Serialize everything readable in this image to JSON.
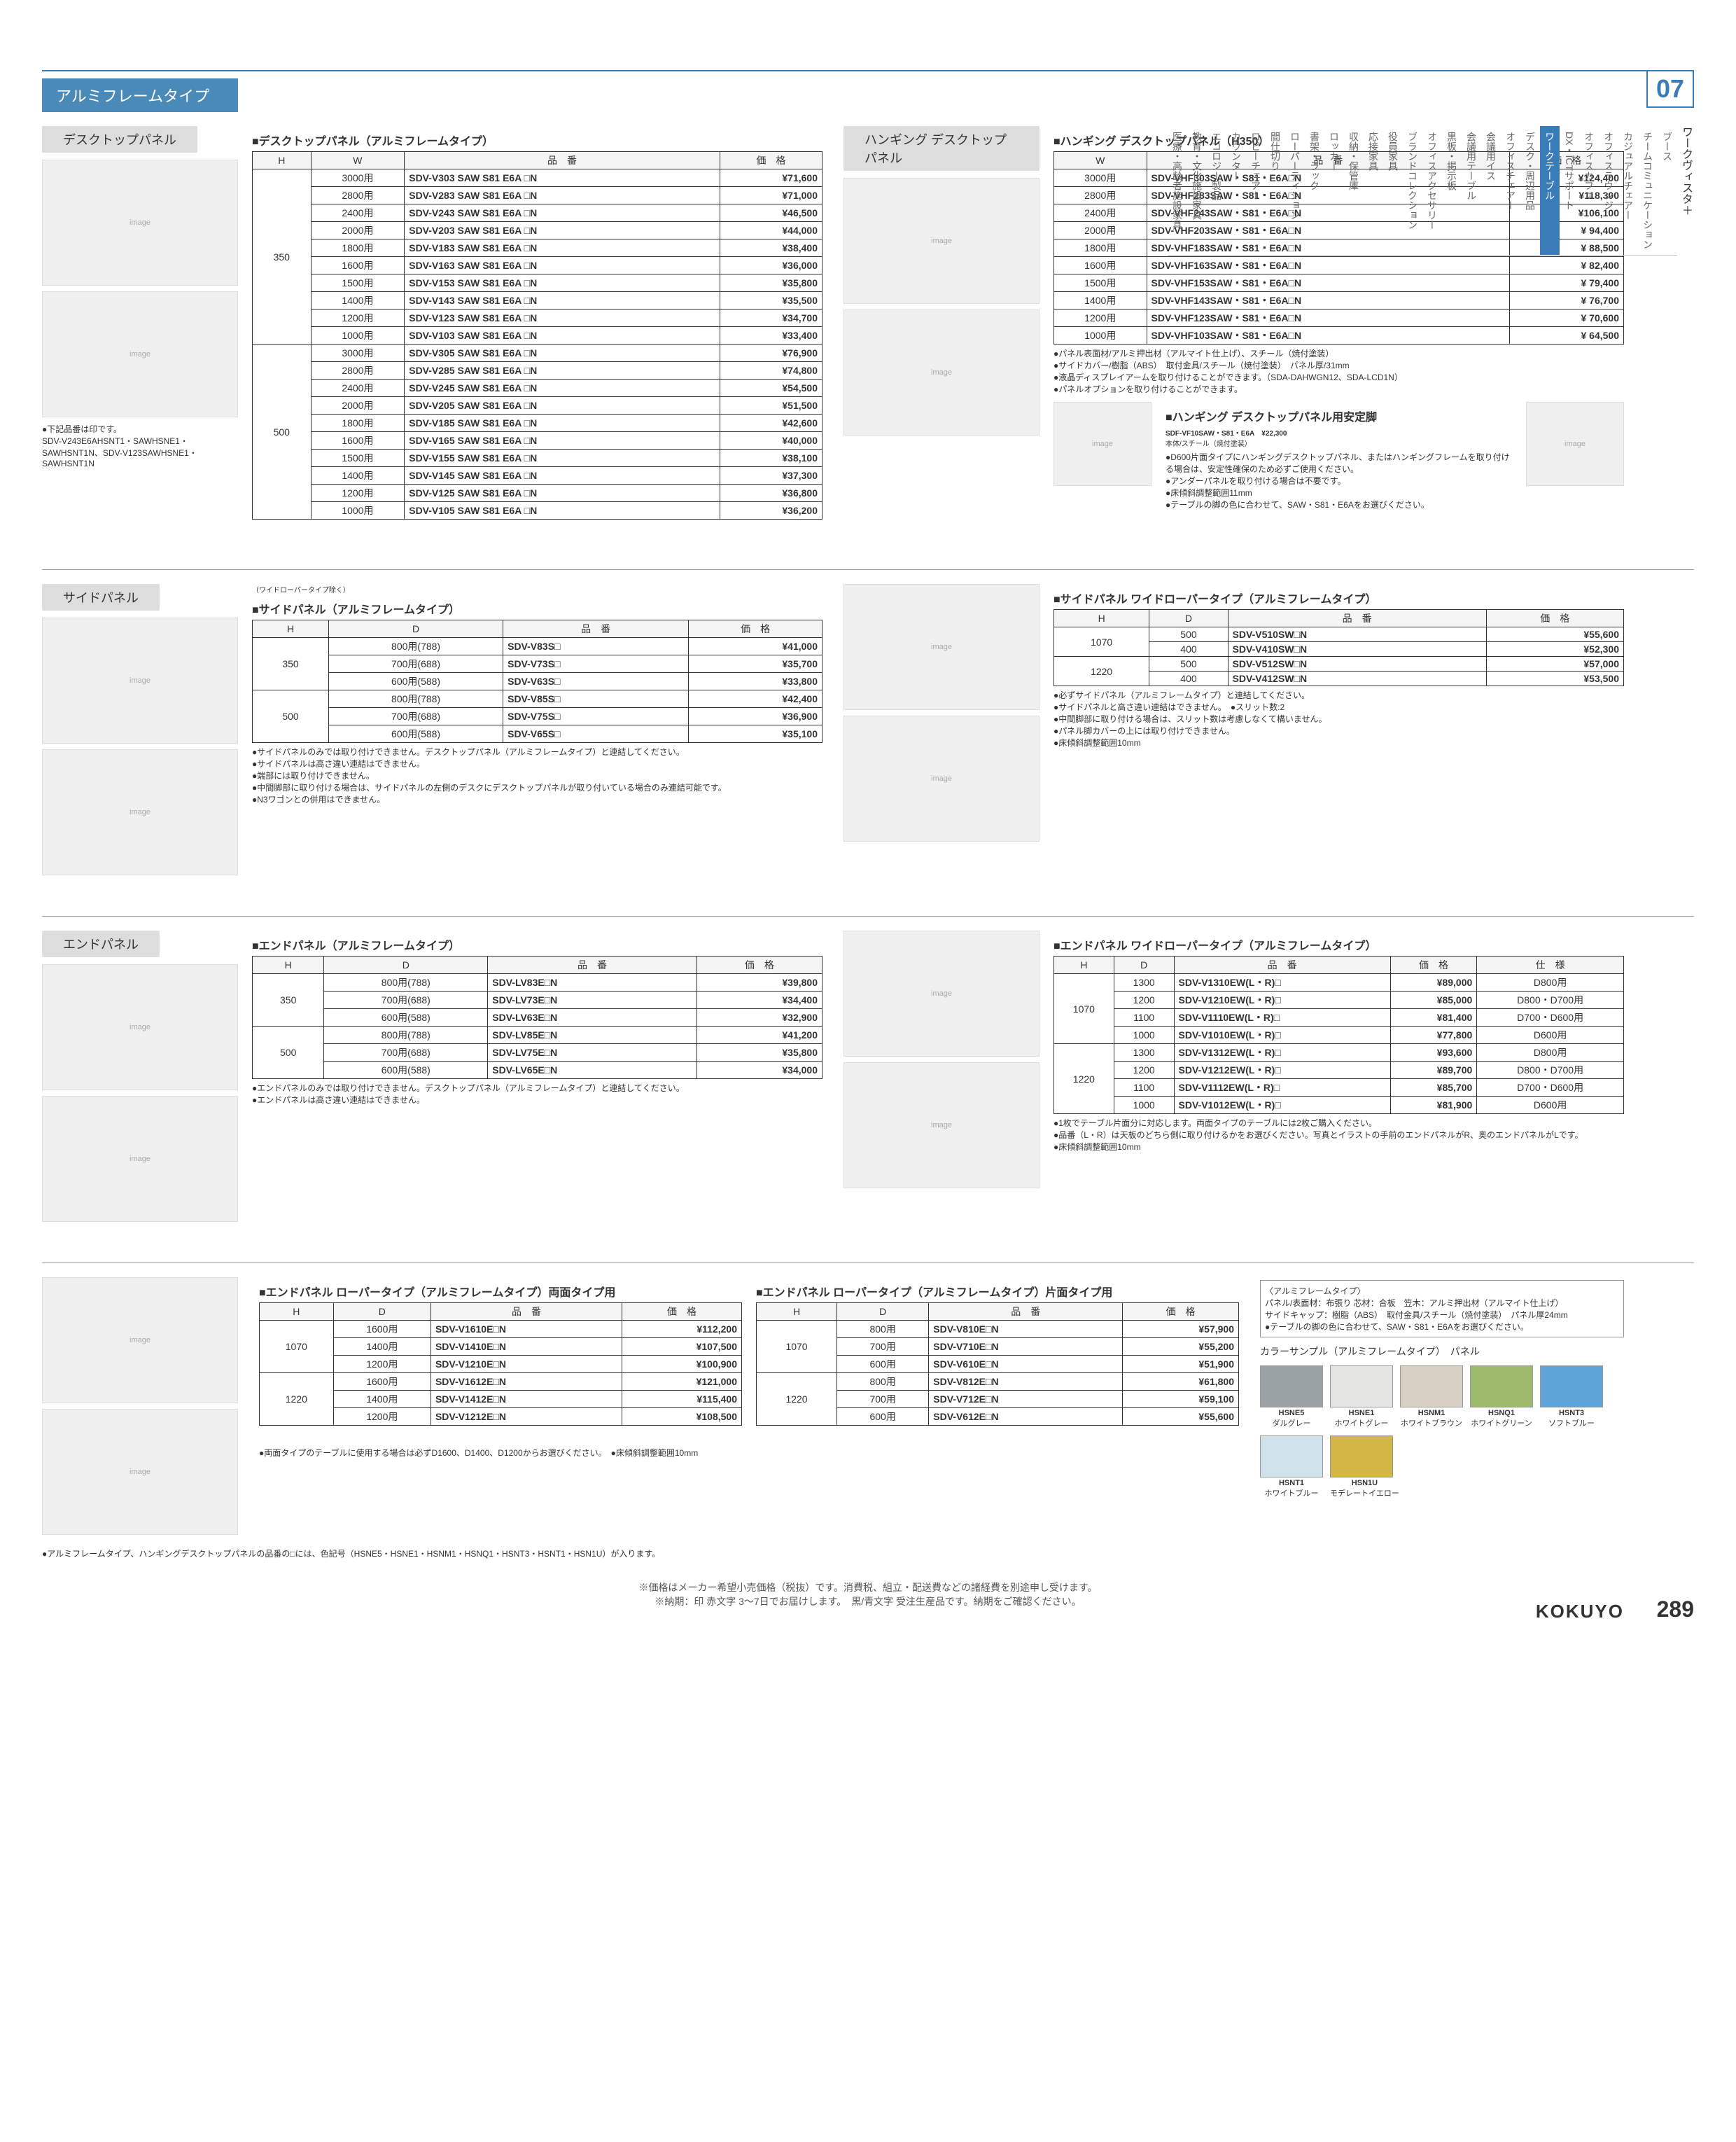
{
  "page_number": "289",
  "brand": "KOKUYO",
  "tab_number": "07",
  "side_heading": "ワークヴィスタ＋",
  "side_nav": [
    "ブース",
    "チームコミュニケーション",
    "カジュアルチェアー",
    "オフィスラウンジ",
    "オフィスカフェ",
    "DX・ICTサポート",
    "ワークテーブル",
    "デスク・周辺用品",
    "オフィスチェアー",
    "会議用イス",
    "会議用テーブル",
    "黒板・掲示板",
    "オフィスアクセサリー",
    "ブランドコレクション",
    "役員家具",
    "応接家具",
    "収納・保管庫",
    "ロッカー",
    "書架・ラック",
    "ローパーティション",
    "間仕切り",
    "ロビーチェアー",
    "カウンター",
    "エコロジー製品",
    "教育・文化施設家具",
    "医療・高齢者施設家具"
  ],
  "side_nav_active_index": 6,
  "main_title": "アルミフレームタイプ",
  "footer_lines": [
    "※価格はメーカー希望小売価格（税抜）です。消費税、組立・配送費などの諸経費を別途申し受けます。",
    "※納期：印 赤文字 3〜7日でお届けします。　黒/青文字 受注生産品です。納期をご確認ください。"
  ],
  "sections": {
    "desktop_panel": {
      "label": "デスクトップパネル",
      "heading": "デスクトップパネル（アルミフレームタイプ）",
      "columns": [
        "H",
        "W",
        "品　番",
        "価　格"
      ],
      "h_groups": [
        {
          "h": "350",
          "rows": [
            {
              "w": "3000用",
              "code": "SDV-V303 SAW S81 E6A □N",
              "price": "¥71,600"
            },
            {
              "w": "2800用",
              "code": "SDV-V283 SAW S81 E6A □N",
              "price": "¥71,000"
            },
            {
              "w": "2400用",
              "code": "SDV-V243 SAW S81 E6A □N",
              "price": "¥46,500"
            },
            {
              "w": "2000用",
              "code": "SDV-V203 SAW S81 E6A □N",
              "price": "¥44,000"
            },
            {
              "w": "1800用",
              "code": "SDV-V183 SAW S81 E6A □N",
              "price": "¥38,400"
            },
            {
              "w": "1600用",
              "code": "SDV-V163 SAW S81 E6A □N",
              "price": "¥36,000"
            },
            {
              "w": "1500用",
              "code": "SDV-V153 SAW S81 E6A □N",
              "price": "¥35,800"
            },
            {
              "w": "1400用",
              "code": "SDV-V143 SAW S81 E6A □N",
              "price": "¥35,500"
            },
            {
              "w": "1200用",
              "code": "SDV-V123 SAW S81 E6A □N",
              "price": "¥34,700"
            },
            {
              "w": "1000用",
              "code": "SDV-V103 SAW S81 E6A □N",
              "price": "¥33,400"
            }
          ]
        },
        {
          "h": "500",
          "rows": [
            {
              "w": "3000用",
              "code": "SDV-V305 SAW S81 E6A □N",
              "price": "¥76,900"
            },
            {
              "w": "2800用",
              "code": "SDV-V285 SAW S81 E6A □N",
              "price": "¥74,800"
            },
            {
              "w": "2400用",
              "code": "SDV-V245 SAW S81 E6A □N",
              "price": "¥54,500"
            },
            {
              "w": "2000用",
              "code": "SDV-V205 SAW S81 E6A □N",
              "price": "¥51,500"
            },
            {
              "w": "1800用",
              "code": "SDV-V185 SAW S81 E6A □N",
              "price": "¥42,600"
            },
            {
              "w": "1600用",
              "code": "SDV-V165 SAW S81 E6A □N",
              "price": "¥40,000"
            },
            {
              "w": "1500用",
              "code": "SDV-V155 SAW S81 E6A □N",
              "price": "¥38,100"
            },
            {
              "w": "1400用",
              "code": "SDV-V145 SAW S81 E6A □N",
              "price": "¥37,300"
            },
            {
              "w": "1200用",
              "code": "SDV-V125 SAW S81 E6A □N",
              "price": "¥36,800"
            },
            {
              "w": "1000用",
              "code": "SDV-V105 SAW S81 E6A □N",
              "price": "¥36,200"
            }
          ]
        }
      ],
      "foot": "●下記品番は印です。\nSDV-V243E6AHSNT1・SAWHSNE1・SAWHSNT1N、SDV-V123SAWHSNE1・SAWHSNT1N"
    },
    "hanging": {
      "label": "ハンギング デスクトップパネル",
      "heading": "ハンギング デスクトップパネル（H350）",
      "columns": [
        "W",
        "品　番",
        "価　格"
      ],
      "rows": [
        {
          "w": "3000用",
          "code": "SDV-VHF303SAW・S81・E6A□N",
          "price": "¥124,400"
        },
        {
          "w": "2800用",
          "code": "SDV-VHF283SAW・S81・E6A□N",
          "price": "¥118,300"
        },
        {
          "w": "2400用",
          "code": "SDV-VHF243SAW・S81・E6A□N",
          "price": "¥106,100"
        },
        {
          "w": "2000用",
          "code": "SDV-VHF203SAW・S81・E6A□N",
          "price": "¥ 94,400"
        },
        {
          "w": "1800用",
          "code": "SDV-VHF183SAW・S81・E6A□N",
          "price": "¥ 88,500"
        },
        {
          "w": "1600用",
          "code": "SDV-VHF163SAW・S81・E6A□N",
          "price": "¥ 82,400"
        },
        {
          "w": "1500用",
          "code": "SDV-VHF153SAW・S81・E6A□N",
          "price": "¥ 79,400"
        },
        {
          "w": "1400用",
          "code": "SDV-VHF143SAW・S81・E6A□N",
          "price": "¥ 76,700"
        },
        {
          "w": "1200用",
          "code": "SDV-VHF123SAW・S81・E6A□N",
          "price": "¥ 70,600"
        },
        {
          "w": "1000用",
          "code": "SDV-VHF103SAW・S81・E6A□N",
          "price": "¥ 64,500"
        }
      ],
      "notes": [
        "パネル表面材/アルミ押出材（アルマイト仕上げ）、スチール（焼付塗装）",
        "サイドカバー/樹脂（ABS）　取付金具/スチール（焼付塗装）　パネル厚/31mm",
        "液晶ディスプレイアームを取り付けることができます。（SDA-DAHWGN12、SDA-LCD1N）",
        "パネルオプションを取り付けることができます。"
      ],
      "leg": {
        "heading": "ハンギング デスクトップパネル用安定脚",
        "code": "SDF-VF10SAW・S81・E6A",
        "price": "¥22,300",
        "spec": "本体/スチール（焼付塗装）",
        "notes": [
          "D600片面タイプにハンギングデスクトップパネル、またはハンギングフレームを取り付ける場合は、安定性確保のため必ずご使用ください。",
          "アンダーパネルを取り付ける場合は不要です。",
          "床傾斜調整範囲11mm",
          "テーブルの脚の色に合わせて、SAW・S81・E6Aをお選びください。"
        ]
      }
    },
    "side_panel": {
      "label": "サイドパネル",
      "note_top": "（ワイドローパータイプ除く）",
      "heading": "サイドパネル（アルミフレームタイプ）",
      "columns": [
        "H",
        "D",
        "品　番",
        "価　格"
      ],
      "h_groups": [
        {
          "h": "350",
          "rows": [
            {
              "d": "800用(788)",
              "code": "SDV-V83S□",
              "price": "¥41,000"
            },
            {
              "d": "700用(688)",
              "code": "SDV-V73S□",
              "price": "¥35,700"
            },
            {
              "d": "600用(588)",
              "code": "SDV-V63S□",
              "price": "¥33,800"
            }
          ]
        },
        {
          "h": "500",
          "rows": [
            {
              "d": "800用(788)",
              "code": "SDV-V85S□",
              "price": "¥42,400"
            },
            {
              "d": "700用(688)",
              "code": "SDV-V75S□",
              "price": "¥36,900"
            },
            {
              "d": "600用(588)",
              "code": "SDV-V65S□",
              "price": "¥35,100"
            }
          ]
        }
      ],
      "notes": [
        "サイドパネルのみでは取り付けできません。デスクトップパネル（アルミフレームタイプ）と連結してください。",
        "サイドパネルは高さ違い連結はできません。",
        "端部には取り付けできません。",
        "中間脚部に取り付ける場合は、サイドパネルの左側のデスクにデスクトップパネルが取り付いている場合のみ連結可能です。",
        "N3ワゴンとの併用はできません。"
      ]
    },
    "side_wide": {
      "heading": "サイドパネル ワイドローパータイプ（アルミフレームタイプ）",
      "columns": [
        "H",
        "D",
        "品　番",
        "価　格"
      ],
      "h_groups": [
        {
          "h": "1070",
          "rows": [
            {
              "d": "500",
              "code": "SDV-V510SW□N",
              "price": "¥55,600"
            },
            {
              "d": "400",
              "code": "SDV-V410SW□N",
              "price": "¥52,300"
            }
          ]
        },
        {
          "h": "1220",
          "rows": [
            {
              "d": "500",
              "code": "SDV-V512SW□N",
              "price": "¥57,000"
            },
            {
              "d": "400",
              "code": "SDV-V412SW□N",
              "price": "¥53,500"
            }
          ]
        }
      ],
      "notes": [
        "必ずサイドパネル（アルミフレームタイプ）と連結してください。",
        "サイドパネルと高さ違い連結はできません。　●スリット数:2",
        "中間脚部に取り付ける場合は、スリット数は考慮しなくて構いません。",
        "パネル脚カバーの上には取り付けできません。",
        "床傾斜調整範囲10mm"
      ]
    },
    "end_panel": {
      "label": "エンドパネル",
      "heading": "エンドパネル（アルミフレームタイプ）",
      "columns": [
        "H",
        "D",
        "品　番",
        "価　格"
      ],
      "h_groups": [
        {
          "h": "350",
          "rows": [
            {
              "d": "800用(788)",
              "code": "SDV-LV83E□N",
              "price": "¥39,800"
            },
            {
              "d": "700用(688)",
              "code": "SDV-LV73E□N",
              "price": "¥34,400"
            },
            {
              "d": "600用(588)",
              "code": "SDV-LV63E□N",
              "price": "¥32,900"
            }
          ]
        },
        {
          "h": "500",
          "rows": [
            {
              "d": "800用(788)",
              "code": "SDV-LV85E□N",
              "price": "¥41,200"
            },
            {
              "d": "700用(688)",
              "code": "SDV-LV75E□N",
              "price": "¥35,800"
            },
            {
              "d": "600用(588)",
              "code": "SDV-LV65E□N",
              "price": "¥34,000"
            }
          ]
        }
      ],
      "notes": [
        "エンドパネルのみでは取り付けできません。デスクトップパネル（アルミフレームタイプ）と連結してください。",
        "エンドパネルは高さ違い連結はできません。"
      ]
    },
    "end_wide": {
      "heading": "エンドパネル ワイドローパータイプ（アルミフレームタイプ）",
      "columns": [
        "H",
        "D",
        "品　番",
        "価　格",
        "仕　様"
      ],
      "h_groups": [
        {
          "h": "1070",
          "rows": [
            {
              "d": "1300",
              "code": "SDV-V1310EW(L・R)□",
              "price": "¥89,000",
              "spec": "D800用"
            },
            {
              "d": "1200",
              "code": "SDV-V1210EW(L・R)□",
              "price": "¥85,000",
              "spec": "D800・D700用"
            },
            {
              "d": "1100",
              "code": "SDV-V1110EW(L・R)□",
              "price": "¥81,400",
              "spec": "D700・D600用"
            },
            {
              "d": "1000",
              "code": "SDV-V1010EW(L・R)□",
              "price": "¥77,800",
              "spec": "D600用"
            }
          ]
        },
        {
          "h": "1220",
          "rows": [
            {
              "d": "1300",
              "code": "SDV-V1312EW(L・R)□",
              "price": "¥93,600",
              "spec": "D800用"
            },
            {
              "d": "1200",
              "code": "SDV-V1212EW(L・R)□",
              "price": "¥89,700",
              "spec": "D800・D700用"
            },
            {
              "d": "1100",
              "code": "SDV-V1112EW(L・R)□",
              "price": "¥85,700",
              "spec": "D700・D600用"
            },
            {
              "d": "1000",
              "code": "SDV-V1012EW(L・R)□",
              "price": "¥81,900",
              "spec": "D600用"
            }
          ]
        }
      ],
      "notes": [
        "1枚でテーブル片面分に対応します。両面タイプのテーブルには2枚ご購入ください。",
        "品番（L・R）は天板のどちら側に取り付けるかをお選びください。写真とイラストの手前のエンドパネルがR、奥のエンドパネルがLです。",
        "床傾斜調整範囲10mm"
      ]
    },
    "end_lower_both": {
      "heading": "エンドパネル ローパータイプ（アルミフレームタイプ）両面タイプ用",
      "columns": [
        "H",
        "D",
        "品　番",
        "価　格"
      ],
      "h_groups": [
        {
          "h": "1070",
          "rows": [
            {
              "d": "1600用",
              "code": "SDV-V1610E□N",
              "price": "¥112,200"
            },
            {
              "d": "1400用",
              "code": "SDV-V1410E□N",
              "price": "¥107,500"
            },
            {
              "d": "1200用",
              "code": "SDV-V1210E□N",
              "price": "¥100,900"
            }
          ]
        },
        {
          "h": "1220",
          "rows": [
            {
              "d": "1600用",
              "code": "SDV-V1612E□N",
              "price": "¥121,000"
            },
            {
              "d": "1400用",
              "code": "SDV-V1412E□N",
              "price": "¥115,400"
            },
            {
              "d": "1200用",
              "code": "SDV-V1212E□N",
              "price": "¥108,500"
            }
          ]
        }
      ]
    },
    "end_lower_single": {
      "heading": "エンドパネル ローパータイプ（アルミフレームタイプ）片面タイプ用",
      "columns": [
        "H",
        "D",
        "品　番",
        "価　格"
      ],
      "h_groups": [
        {
          "h": "1070",
          "rows": [
            {
              "d": "800用",
              "code": "SDV-V810E□N",
              "price": "¥57,900"
            },
            {
              "d": "700用",
              "code": "SDV-V710E□N",
              "price": "¥55,200"
            },
            {
              "d": "600用",
              "code": "SDV-V610E□N",
              "price": "¥51,900"
            }
          ]
        },
        {
          "h": "1220",
          "rows": [
            {
              "d": "800用",
              "code": "SDV-V812E□N",
              "price": "¥61,800"
            },
            {
              "d": "700用",
              "code": "SDV-V712E□N",
              "price": "¥59,100"
            },
            {
              "d": "600用",
              "code": "SDV-V612E□N",
              "price": "¥55,600"
            }
          ]
        }
      ],
      "foot": "●両面タイプのテーブルに使用する場合は必ずD1600、D1400、D1200からお選びください。　●床傾斜調整範囲10mm"
    },
    "material_note": {
      "lines": [
        "〈アルミフレームタイプ〉",
        "パネル/表面材：布張り 芯材：合板　笠木：アルミ押出材（アルマイト仕上げ）",
        "サイドキャップ：樹脂（ABS）　取付金具/スチール（焼付塗装）　パネル厚24mm",
        "●テーブルの脚の色に合わせて、SAW・S81・E6Aをお選びください。"
      ]
    },
    "swatches": {
      "heading": "カラーサンプル（アルミフレームタイプ）　パネル",
      "items": [
        {
          "code": "HSNE5",
          "name": "ダルグレー",
          "color": "#9aa2a6"
        },
        {
          "code": "HSNE1",
          "name": "ホワイトグレー",
          "color": "#e4e4e2"
        },
        {
          "code": "HSNM1",
          "name": "ホワイトブラウン",
          "color": "#d9d0c4"
        },
        {
          "code": "HSNQ1",
          "name": "ホワイトグリーン",
          "color": "#9db96a"
        },
        {
          "code": "HSNT3",
          "name": "ソフトブルー",
          "color": "#5fa4d6"
        },
        {
          "code": "HSNT1",
          "name": "ホワイトブルー",
          "color": "#cfe2ec"
        },
        {
          "code": "HSN1U",
          "name": "モデレートイエロー",
          "color": "#d4b647"
        }
      ]
    },
    "bottom_note": "●アルミフレームタイプ、ハンギングデスクトップパネルの品番の□には、色記号（HSNE5・HSNE1・HSNM1・HSNQ1・HSNT3・HSNT1・HSN1U）が入ります。"
  }
}
